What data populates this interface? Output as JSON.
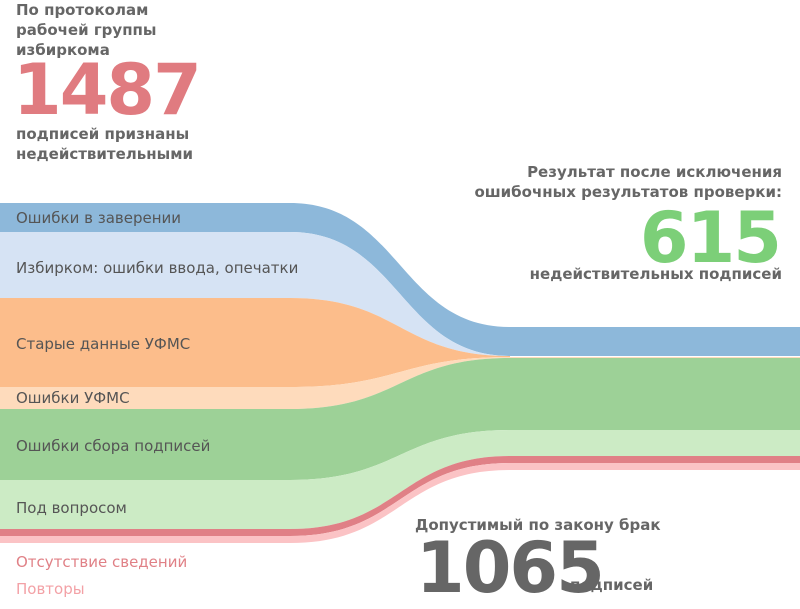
{
  "top_left": {
    "heading_lines": [
      "По протоколам",
      "рабочей группы",
      "избиркома"
    ],
    "total": "1487",
    "caption_lines": [
      "подписей признаны",
      "недействительными"
    ]
  },
  "right": {
    "heading_lines": [
      "Результат после исключения",
      "ошибочных результатов проверки:"
    ],
    "total": "615",
    "caption": "недействительных подписей"
  },
  "bottom": {
    "heading": "Допустимый по закону брак",
    "total": "1065",
    "caption": "подписей"
  },
  "categories": [
    {
      "label": "Ошибки в заверении",
      "color": "#8db8da",
      "label_color": "#555555"
    },
    {
      "label": "Избирком: ошибки ввода, опечатки",
      "color": "#d6e3f4",
      "label_color": "#555555"
    },
    {
      "label": "Старые данные УФМС",
      "color": "#fcbd8b",
      "label_color": "#555555"
    },
    {
      "label": "Ошибки УФМС",
      "color": "#fedbbc",
      "label_color": "#555555"
    },
    {
      "label": "Ошибки сбора подписей",
      "color": "#9dd197",
      "label_color": "#555555"
    },
    {
      "label": "Под вопросом",
      "color": "#ccebc5",
      "label_color": "#555555"
    },
    {
      "label": "Отсутствие сведений",
      "color": "#e08086",
      "label_color": "#e08086"
    },
    {
      "label": "Повторы",
      "color": "#fbc3c5",
      "label_color": "#f3a1a6"
    }
  ],
  "colors": {
    "big_red": "#e07b80",
    "big_green": "#7ccf78",
    "big_gray": "#666666"
  }
}
